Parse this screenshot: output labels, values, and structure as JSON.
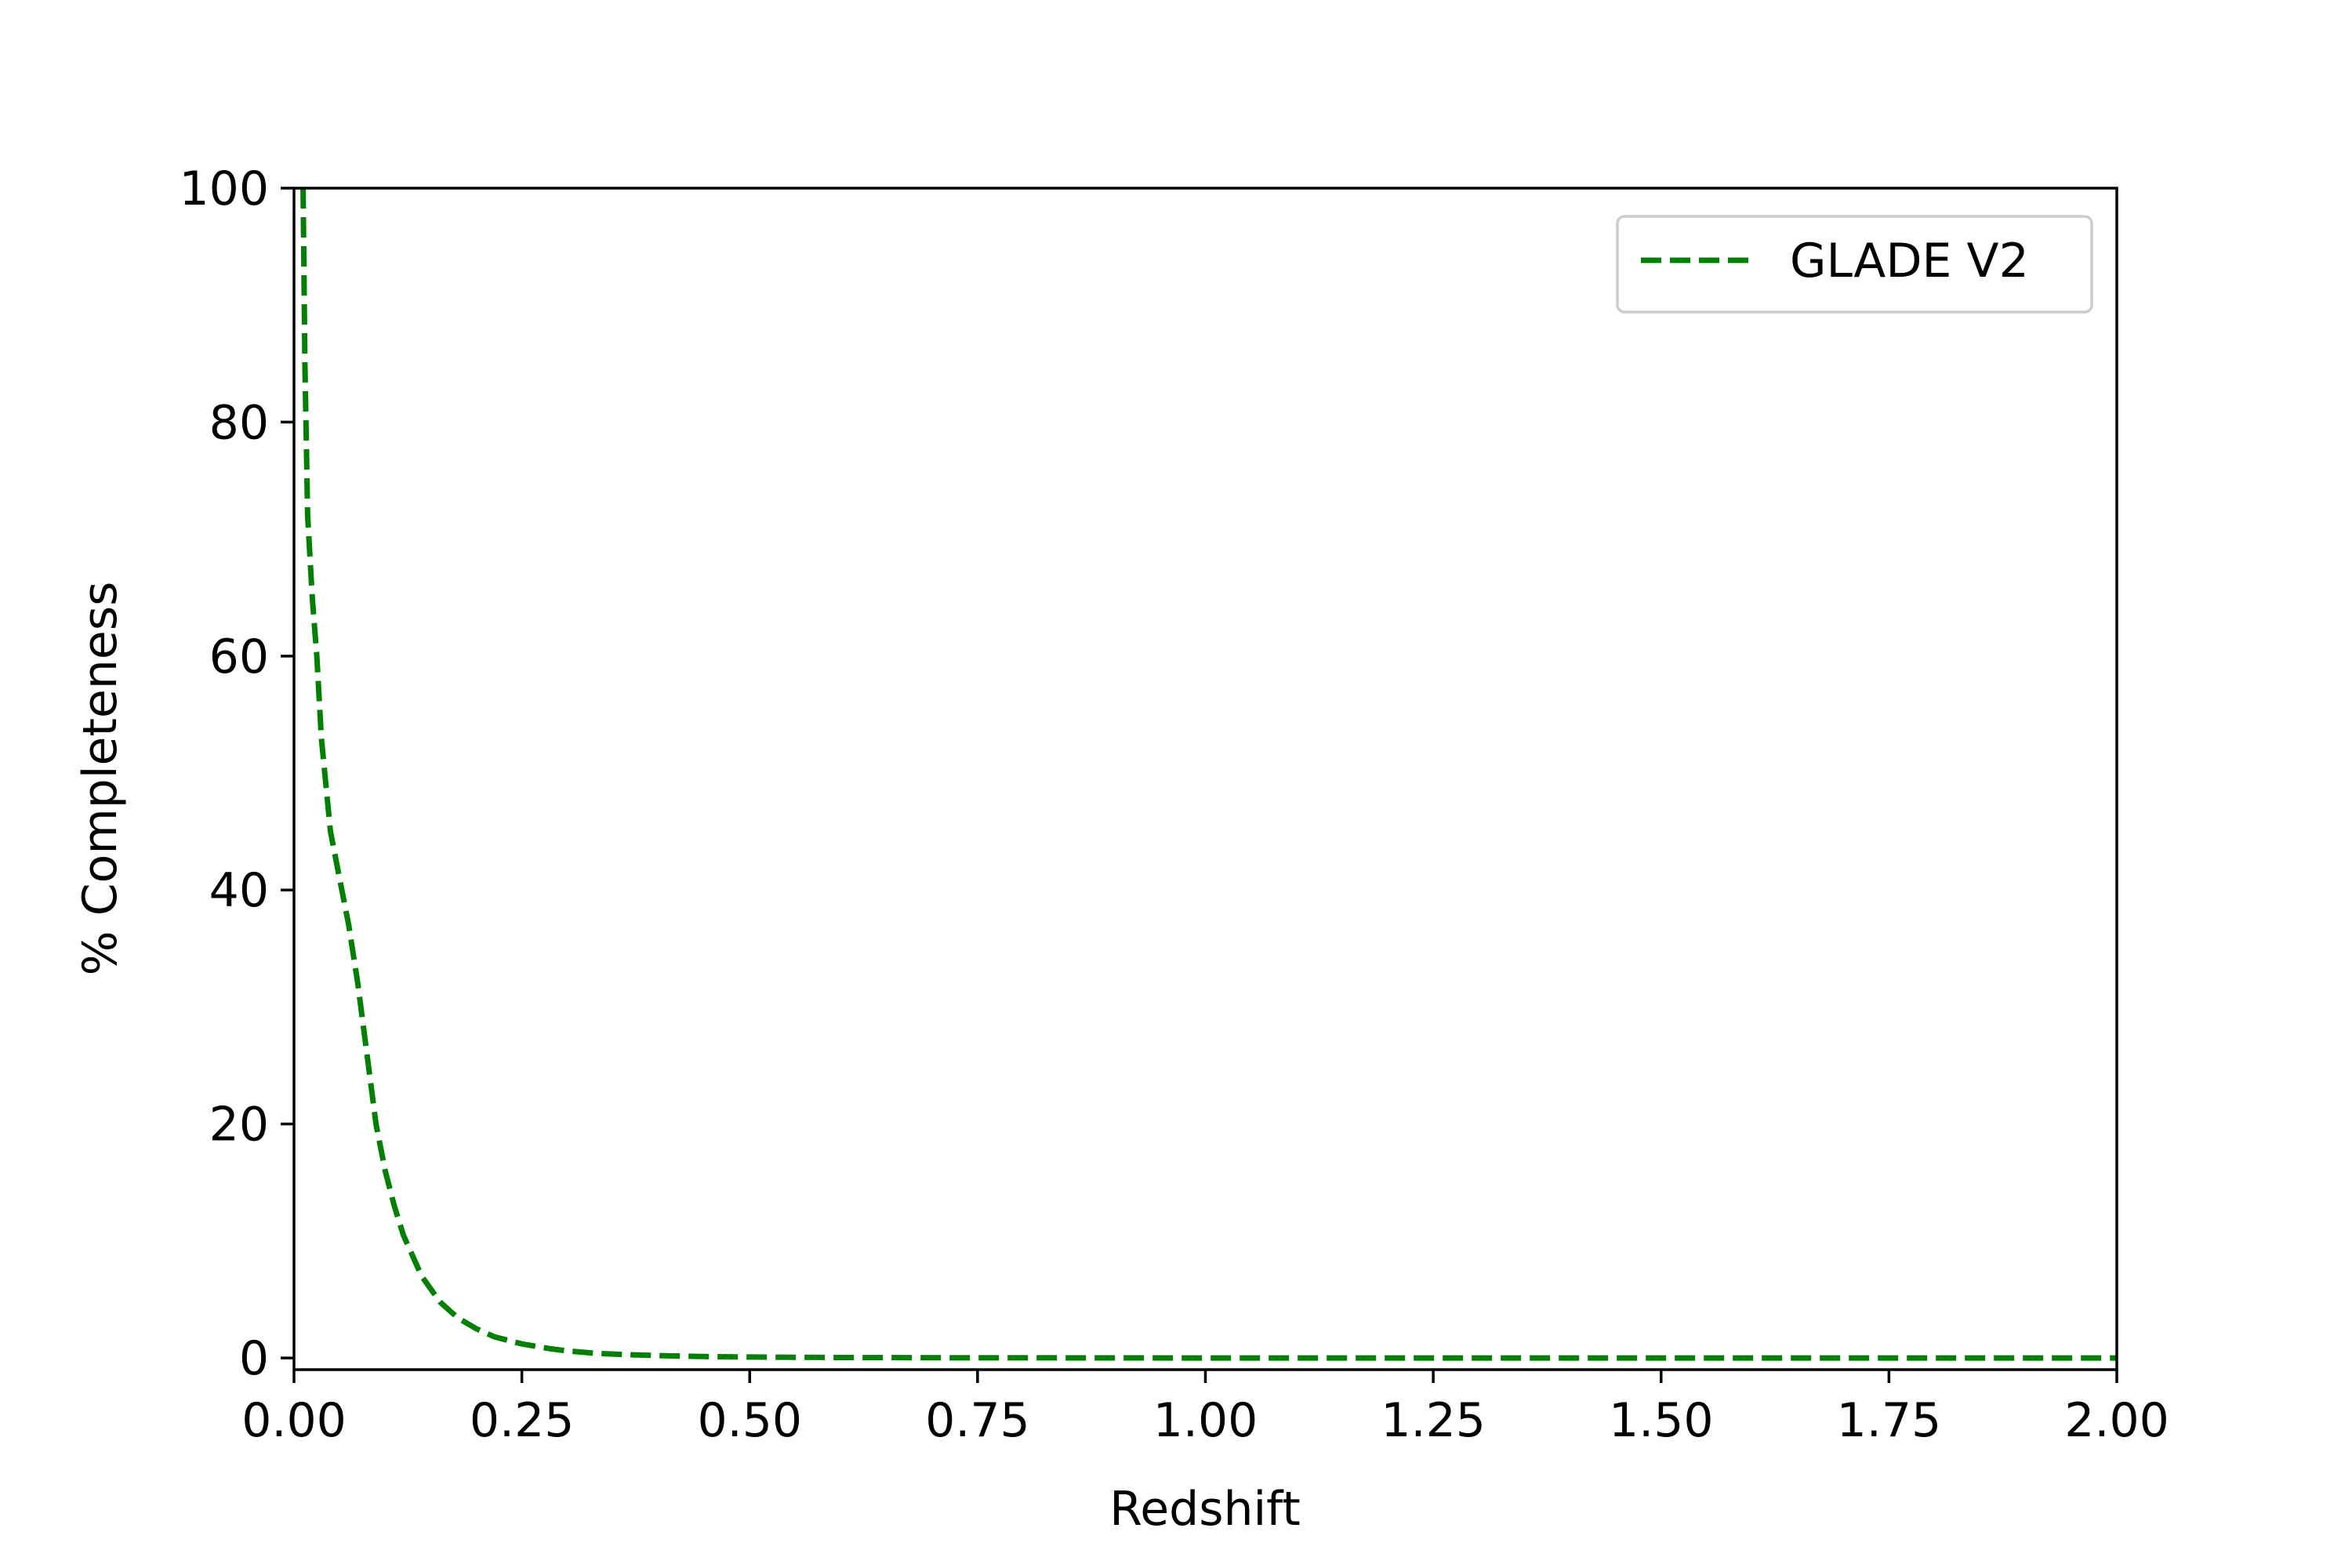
{
  "chart_data": {
    "type": "line",
    "xlabel": "Redshift",
    "ylabel": "% Completeness",
    "xlim": [
      0,
      2
    ],
    "ylim": [
      -1,
      100
    ],
    "xticks": [
      0,
      0.25,
      0.5,
      0.75,
      1.0,
      1.25,
      1.5,
      1.75,
      2.0
    ],
    "xtick_labels": [
      "0.00",
      "0.25",
      "0.50",
      "0.75",
      "1.00",
      "1.25",
      "1.50",
      "1.75",
      "2.00"
    ],
    "yticks": [
      0,
      20,
      40,
      60,
      80,
      100
    ],
    "ytick_labels": [
      "0",
      "20",
      "40",
      "60",
      "80",
      "100"
    ],
    "grid": false,
    "legend": {
      "position": "upper-right"
    },
    "series": [
      {
        "name": "GLADE V2",
        "color": "#008000",
        "linestyle": "dashed",
        "x": [
          0.01,
          0.012,
          0.015,
          0.02,
          0.025,
          0.03,
          0.04,
          0.05,
          0.06,
          0.07,
          0.08,
          0.09,
          0.1,
          0.11,
          0.12,
          0.14,
          0.16,
          0.18,
          0.2,
          0.22,
          0.25,
          0.28,
          0.3,
          0.33,
          0.36,
          0.4,
          0.45,
          0.5,
          0.6,
          0.7,
          0.8,
          1.0,
          1.25,
          1.5,
          1.75,
          2.0
        ],
        "y": [
          100,
          85,
          72,
          65,
          60,
          53,
          45,
          41,
          37,
          32,
          26,
          20,
          16,
          13,
          10.5,
          7,
          4.8,
          3.4,
          2.5,
          1.8,
          1.2,
          0.8,
          0.6,
          0.4,
          0.3,
          0.2,
          0.12,
          0.08,
          0.04,
          0.02,
          0.01,
          0,
          0,
          0,
          0,
          0
        ]
      }
    ]
  }
}
